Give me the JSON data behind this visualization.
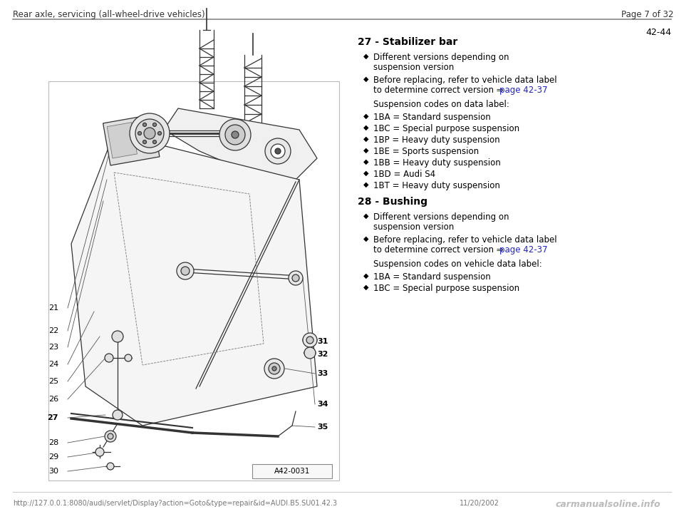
{
  "header_left": "Rear axle, servicing (all-wheel-drive vehicles)",
  "header_right": "Page 7 of 32",
  "page_number": "42-44",
  "bg_color": "#ffffff",
  "header_line_color": "#888888",
  "footer_left": "http://127.0.0.1:8080/audi/servlet/Display?action=Goto&type=repair&id=AUDI.B5.SU01.42.3",
  "footer_right": "11/20/2002",
  "footer_watermark": "carmanualsoline.info",
  "image_label": "A42-0031",
  "section27_title": "27 - Stabilizer bar",
  "section27_bullet1_line1": "Different versions depending on",
  "section27_bullet1_line2": "suspension version",
  "section27_bullet2_line1": "Before replacing, refer to vehicle data label",
  "section27_bullet2_line2": "to determine correct version ⇒ ",
  "section27_bullet2_link": "page 42-37",
  "section27_subheading": "Suspension codes on data label:",
  "section27_codes": [
    "1BA = Standard suspension",
    "1BC = Special purpose suspension",
    "1BP = Heavy duty suspension",
    "1BE = Sports suspension",
    "1BB = Heavy duty suspension",
    "1BD = Audi S4",
    "1BT = Heavy duty suspension"
  ],
  "section28_title": "28 - Bushing",
  "section28_bullet1_line1": "Different versions depending on",
  "section28_bullet1_line2": "suspension version",
  "section28_bullet2_line1": "Before replacing, refer to vehicle data label",
  "section28_bullet2_line2": "to determine correct version ⇒ ",
  "section28_bullet2_link": "page 42-37",
  "section28_subheading": "Suspension codes on vehicle data label:",
  "section28_codes": [
    "1BA = Standard suspension",
    "1BC = Special purpose suspension"
  ],
  "link_color": "#2222cc",
  "text_color": "#000000",
  "footer_font_size": 7,
  "body_font_size": 8.5,
  "diagram_numbers_left": [
    [
      82,
      310,
      "21"
    ],
    [
      82,
      278,
      "22"
    ],
    [
      82,
      255,
      "23"
    ],
    [
      82,
      231,
      "24"
    ],
    [
      82,
      207,
      "25"
    ],
    [
      82,
      182,
      "26"
    ],
    [
      82,
      156,
      "27"
    ],
    [
      82,
      121,
      "28"
    ],
    [
      82,
      101,
      "29"
    ],
    [
      82,
      81,
      "30"
    ]
  ],
  "diagram_numbers_right": [
    [
      445,
      263,
      "31"
    ],
    [
      445,
      245,
      "32"
    ],
    [
      445,
      218,
      "33"
    ],
    [
      445,
      175,
      "34"
    ],
    [
      445,
      143,
      "35"
    ]
  ]
}
